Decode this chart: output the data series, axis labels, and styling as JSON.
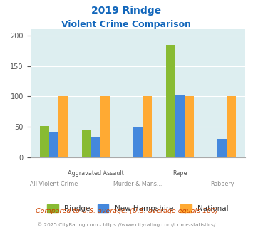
{
  "title_line1": "2019 Rindge",
  "title_line2": "Violent Crime Comparison",
  "rindge": [
    51,
    46,
    0,
    185,
    0
  ],
  "new_hampshire": [
    41,
    34,
    50,
    102,
    30
  ],
  "national": [
    100,
    100,
    100,
    100,
    100
  ],
  "bar_colors": {
    "rindge": "#88bb33",
    "new_hampshire": "#4488dd",
    "national": "#ffaa33"
  },
  "ylim": [
    0,
    210
  ],
  "yticks": [
    0,
    50,
    100,
    150,
    200
  ],
  "background_color": "#ddeef0",
  "title_color": "#1166bb",
  "footnote1": "Compared to U.S. average. (U.S. average equals 100)",
  "footnote2": "© 2025 CityRating.com - https://www.cityrating.com/crime-statistics/",
  "legend_labels": [
    "Rindge",
    "New Hampshire",
    "National"
  ]
}
